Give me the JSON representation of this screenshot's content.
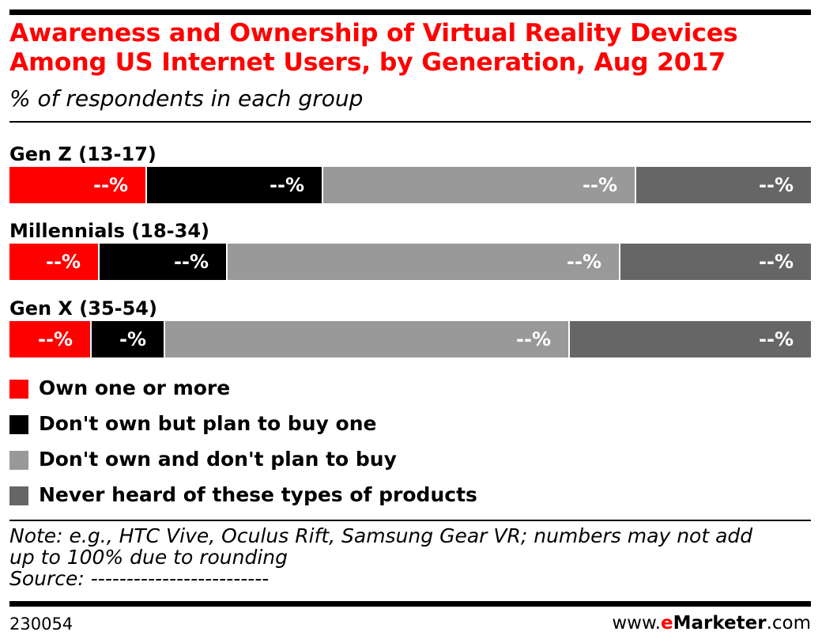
{
  "chart_data": {
    "type": "bar",
    "orientation": "horizontal",
    "stacked": true,
    "title": "Awareness and Ownership of Virtual Reality Devices Among US Internet Users, by Generation, Aug 2017",
    "subtitle": "% of respondents in each group",
    "categories": [
      "Gen Z (13-17)",
      "Millennials (18-34)",
      "Gen X (35-54)"
    ],
    "series": [
      {
        "name": "Own one or more",
        "color": "#ff0000",
        "values": [
          17,
          11,
          10
        ],
        "labels": [
          "--%",
          "--%",
          "--%"
        ]
      },
      {
        "name": "Don't own but plan to buy one",
        "color": "#000000",
        "values": [
          22,
          16,
          9
        ],
        "labels": [
          "--%",
          "--%",
          "-%"
        ]
      },
      {
        "name": "Don't own and don't plan to buy",
        "color": "#999999",
        "values": [
          39,
          49,
          50
        ],
        "labels": [
          "--%",
          "--%",
          "--%"
        ]
      },
      {
        "name": "Never heard of these types of products",
        "color": "#666666",
        "values": [
          22,
          24,
          30
        ],
        "labels": [
          "--%",
          "--%",
          "--%"
        ]
      }
    ],
    "legend_position": "bottom",
    "grid": false
  },
  "note": {
    "line1": "Note: e.g., HTC Vive, Oculus Rift, Samsung Gear VR; numbers may not add",
    "line2": "up to 100% due to rounding",
    "source": "Source: -------------------------"
  },
  "footer": {
    "chart_id": "230054",
    "brand_prefix": "www.",
    "brand_accent": "e",
    "brand_name": "Marketer",
    "brand_suffix": ".com"
  }
}
